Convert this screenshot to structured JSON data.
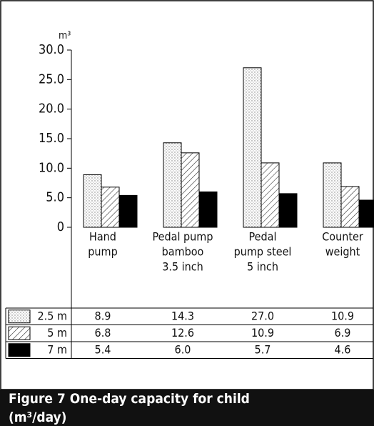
{
  "chart_data": {
    "type": "bar",
    "title": "Figure 7  One-day capacity for child (m³/day)",
    "y_label": "m³",
    "categories": [
      [
        "Hand",
        "pump"
      ],
      [
        "Pedal pump",
        "bamboo",
        "3.5 inch"
      ],
      [
        "Pedal",
        "pump steel",
        "5 inch"
      ],
      [
        "Counter",
        "weight"
      ]
    ],
    "series": [
      {
        "name": "2.5 m",
        "color": "#000000",
        "pattern": "dots",
        "values": [
          8.9,
          14.3,
          27.0,
          10.9
        ],
        "value_labels": [
          "8.9",
          "14.3",
          "27.0",
          "10.9"
        ]
      },
      {
        "name": "5 m",
        "color": "#000000",
        "pattern": "hatch",
        "values": [
          6.8,
          12.6,
          10.9,
          6.9
        ],
        "value_labels": [
          "6.8",
          "12.6",
          "10.9",
          "6.9"
        ]
      },
      {
        "name": "7 m",
        "color": "#000000",
        "pattern": "solid",
        "values": [
          5.4,
          6.0,
          5.7,
          4.6
        ],
        "value_labels": [
          "5.4",
          "6.0",
          "5.7",
          "4.6"
        ]
      }
    ],
    "ylim": [
      0,
      30
    ],
    "yticks": [
      0,
      {
        "value": 5,
        "label": "5.0"
      },
      {
        "value": 10,
        "label": "10.0"
      },
      {
        "value": 15,
        "label": "15.0"
      },
      {
        "value": 20,
        "label": "20.0"
      },
      {
        "value": 25,
        "label": "25.0"
      },
      {
        "value": 30,
        "label": "30.0"
      }
    ],
    "grid": false
  }
}
